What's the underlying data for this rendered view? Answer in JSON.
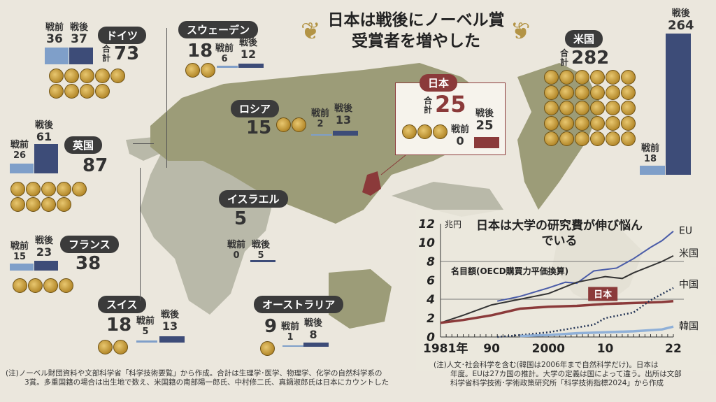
{
  "main_title": [
    "日本は戦後にノーベル賞",
    "受賞者を増やした"
  ],
  "labels": {
    "pre": "戦前",
    "post": "戦後",
    "total": "合計"
  },
  "countries": [
    {
      "name": "ドイツ",
      "total": "73",
      "pre": "36",
      "post": "37"
    },
    {
      "name": "スウェーデン",
      "total": "18",
      "pre": "6",
      "post": "12"
    },
    {
      "name": "ロシア",
      "total": "15",
      "pre": "2",
      "post": "13"
    },
    {
      "name": "日本",
      "total": "25",
      "pre": "0",
      "post": "25"
    },
    {
      "name": "米国",
      "total": "282",
      "pre": "18",
      "post": "264"
    },
    {
      "name": "英国",
      "total": "87",
      "pre": "26",
      "post": "61"
    },
    {
      "name": "イスラエル",
      "total": "5",
      "pre": "0",
      "post": "5"
    },
    {
      "name": "フランス",
      "total": "38",
      "pre": "15",
      "post": "23"
    },
    {
      "name": "スイス",
      "total": "18",
      "pre": "5",
      "post": "13"
    },
    {
      "name": "オーストラリア",
      "total": "9",
      "pre": "1",
      "post": "8"
    }
  ],
  "left_note": [
    "(注)ノーベル財団資料や文部科学省「科学技術要覧」から作成。合計は生理学･医学、物理学、化学の自然科学系の",
    "3賞。多重国籍の場合は出生地で数え、米国籍の南部陽一郎氏、中村修二氏、真鍋淑郎氏は日本にカウントした"
  ],
  "chart_data": {
    "type": "line",
    "title": "日本は大学の研究費が伸び悩んでいる",
    "subtitle": "名目額(OECD購買力平価換算)",
    "ylabel": "兆円",
    "ylim": [
      0,
      12
    ],
    "yticks": [
      "0",
      "2",
      "4",
      "6",
      "8",
      "10",
      "12"
    ],
    "xlim": [
      1981,
      2022
    ],
    "xticks": [
      {
        "v": 1981,
        "t": "1981年"
      },
      {
        "v": 1990,
        "t": "90"
      },
      {
        "v": 2000,
        "t": "2000"
      },
      {
        "v": 2010,
        "t": "10"
      },
      {
        "v": 2022,
        "t": "22"
      }
    ],
    "series": [
      {
        "name": "EU",
        "color": "#4a5ca8",
        "x": [
          1991,
          1995,
          2000,
          2003,
          2005,
          2008,
          2012,
          2015,
          2018,
          2020,
          2022
        ],
        "y": [
          3.8,
          4.3,
          5.2,
          5.8,
          5.7,
          7.0,
          7.3,
          8.3,
          9.5,
          10.2,
          11.2
        ]
      },
      {
        "name": "米国",
        "color": "#333333",
        "x": [
          1981,
          1985,
          1990,
          1995,
          2000,
          2005,
          2010,
          2013,
          2015,
          2020,
          2022
        ],
        "y": [
          1.5,
          2.3,
          3.4,
          4.0,
          4.6,
          5.8,
          6.4,
          6.2,
          6.8,
          8.0,
          8.6
        ]
      },
      {
        "name": "日本",
        "color": "#8b3a3a",
        "x": [
          1981,
          1985,
          1990,
          1995,
          2000,
          2005,
          2010,
          2015,
          2020,
          2022
        ],
        "y": [
          1.5,
          1.8,
          2.3,
          3.0,
          3.2,
          3.3,
          3.5,
          3.6,
          3.7,
          3.8
        ]
      },
      {
        "name": "中国",
        "color": "#223355",
        "dashed": true,
        "x": [
          1991,
          1995,
          2000,
          2005,
          2008,
          2010,
          2015,
          2018,
          2022
        ],
        "y": [
          0,
          0.2,
          0.5,
          1.0,
          1.3,
          2.0,
          2.6,
          3.9,
          5.2
        ]
      },
      {
        "name": "韓国",
        "color": "#8fb0d8",
        "x": [
          1995,
          2000,
          2005,
          2010,
          2015,
          2020,
          2022
        ],
        "y": [
          0.1,
          0.2,
          0.4,
          0.5,
          0.6,
          0.8,
          1.1
        ]
      }
    ],
    "note": [
      "(注)人文･社会科学を含む(韓国は2006年まで自然科学だけ)。日本は",
      "年度。EUは27カ国の推計。大学の定義は国によって違う。出所は文部",
      "科学省科学技術･学術政策研究所「科学技術指標2024」から作成"
    ]
  }
}
